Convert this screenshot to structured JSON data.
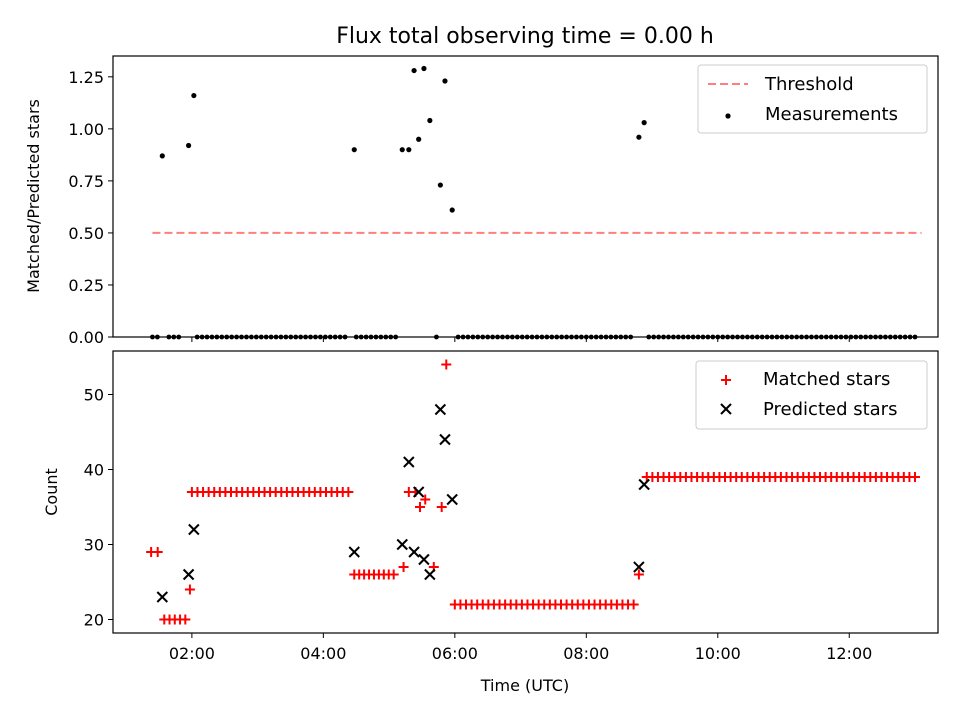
{
  "chart_data": [
    {
      "type": "scatter",
      "title": "Flux total observing time = 0.00 h",
      "xlabel": "",
      "ylabel": "Matched/Predicted stars",
      "ylim": [
        0,
        1.35
      ],
      "xlim_hours": [
        0.8,
        13.35
      ],
      "yticks": [
        {
          "v": 0.0,
          "label": "0.00"
        },
        {
          "v": 0.25,
          "label": "0.25"
        },
        {
          "v": 0.5,
          "label": "0.50"
        },
        {
          "v": 0.75,
          "label": "0.75"
        },
        {
          "v": 1.0,
          "label": "1.00"
        },
        {
          "v": 1.25,
          "label": "1.25"
        }
      ],
      "threshold": {
        "name": "Threshold",
        "value": 0.5,
        "x_start": 1.4,
        "x_end": 13.1,
        "color": "#ff7f7f"
      },
      "measurements": {
        "name": "Measurements",
        "color": "#000000",
        "points": [
          [
            1.55,
            0.87
          ],
          [
            1.95,
            0.92
          ],
          [
            2.03,
            1.16
          ],
          [
            4.47,
            0.9
          ],
          [
            5.2,
            0.9
          ],
          [
            5.3,
            0.9
          ],
          [
            5.38,
            1.28
          ],
          [
            5.45,
            0.95
          ],
          [
            5.53,
            1.29
          ],
          [
            5.62,
            1.04
          ],
          [
            5.78,
            0.73
          ],
          [
            5.85,
            1.23
          ],
          [
            5.96,
            0.61
          ],
          [
            8.8,
            0.96
          ],
          [
            8.88,
            1.03
          ]
        ],
        "zero_ranges": [
          [
            1.4,
            1.5
          ],
          [
            1.65,
            1.85
          ],
          [
            2.08,
            4.38
          ],
          [
            4.5,
            5.15
          ],
          [
            5.72,
            5.72
          ],
          [
            6.05,
            8.7
          ],
          [
            8.95,
            13.05
          ]
        ]
      },
      "legend_loc": "upper right"
    },
    {
      "type": "scatter",
      "title": "",
      "xlabel": "Time (UTC)",
      "ylabel": "Count",
      "ylim": [
        18.2,
        55.8
      ],
      "xlim_hours": [
        0.8,
        13.35
      ],
      "yticks": [
        {
          "v": 20,
          "label": "20"
        },
        {
          "v": 30,
          "label": "30"
        },
        {
          "v": 40,
          "label": "40"
        },
        {
          "v": 50,
          "label": "50"
        }
      ],
      "xticks": [
        {
          "v": 2,
          "label": "02:00"
        },
        {
          "v": 4,
          "label": "04:00"
        },
        {
          "v": 6,
          "label": "06:00"
        },
        {
          "v": 8,
          "label": "08:00"
        },
        {
          "v": 10,
          "label": "10:00"
        },
        {
          "v": 12,
          "label": "12:00"
        }
      ],
      "series": [
        {
          "name": "Matched stars",
          "marker": "+",
          "color": "#ff0000",
          "points": [
            [
              1.38,
              29
            ],
            [
              1.48,
              29
            ],
            [
              1.58,
              20
            ],
            [
              1.66,
              20
            ],
            [
              1.74,
              20
            ],
            [
              1.82,
              20
            ],
            [
              1.9,
              20
            ],
            [
              1.97,
              24
            ],
            [
              5.22,
              27
            ],
            [
              5.3,
              37
            ],
            [
              5.4,
              37
            ],
            [
              5.47,
              35
            ],
            [
              5.55,
              36
            ],
            [
              5.68,
              27
            ],
            [
              5.8,
              35
            ],
            [
              5.87,
              54
            ],
            [
              8.8,
              26
            ]
          ],
          "runs": [
            {
              "start": 2.0,
              "end": 4.4,
              "step": 0.085,
              "value": 37
            },
            {
              "start": 4.47,
              "end": 5.12,
              "step": 0.075,
              "value": 26
            },
            {
              "start": 6.0,
              "end": 8.72,
              "step": 0.085,
              "value": 22
            },
            {
              "start": 8.92,
              "end": 13.05,
              "step": 0.085,
              "value": 39
            }
          ]
        },
        {
          "name": "Predicted stars",
          "marker": "x",
          "color": "#000000",
          "points": [
            [
              1.55,
              23
            ],
            [
              1.95,
              26
            ],
            [
              2.03,
              32
            ],
            [
              4.47,
              29
            ],
            [
              5.2,
              30
            ],
            [
              5.3,
              41
            ],
            [
              5.38,
              29
            ],
            [
              5.45,
              37
            ],
            [
              5.53,
              28
            ],
            [
              5.62,
              26
            ],
            [
              5.78,
              48
            ],
            [
              5.85,
              44
            ],
            [
              5.96,
              36
            ],
            [
              8.8,
              27
            ],
            [
              8.88,
              38
            ]
          ]
        }
      ],
      "legend_loc": "upper right"
    }
  ]
}
